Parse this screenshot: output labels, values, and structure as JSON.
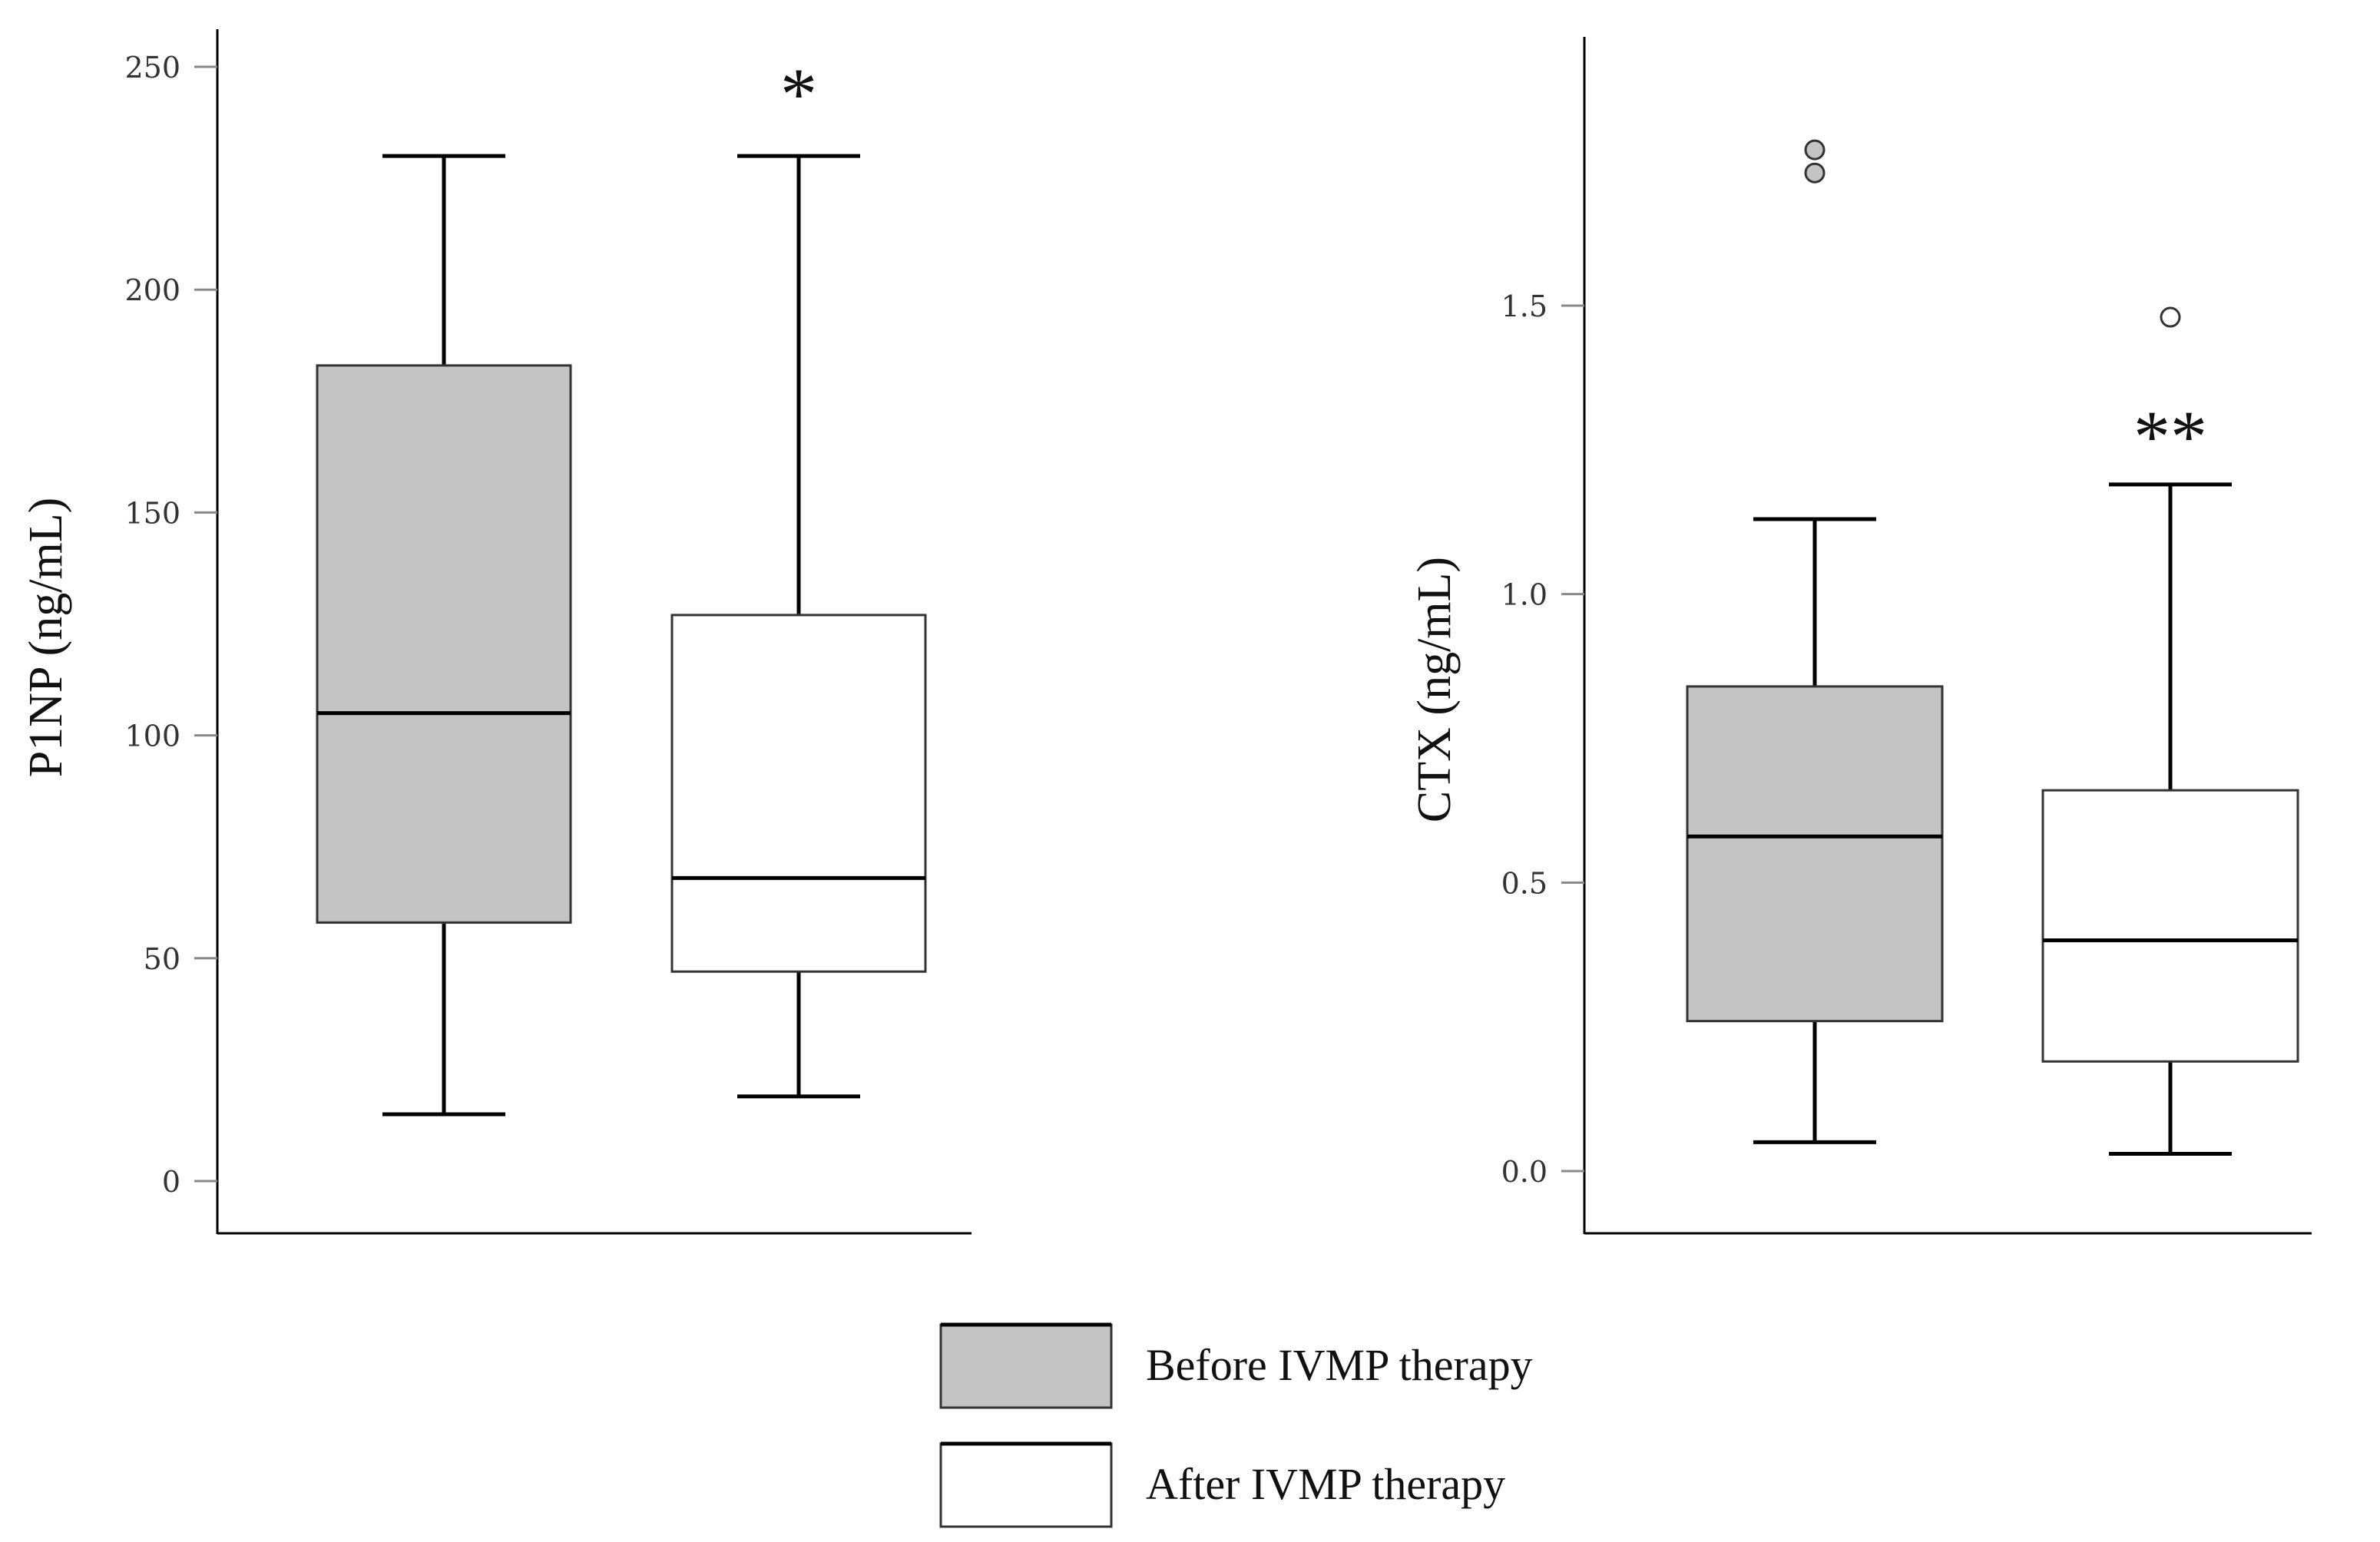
{
  "colors": {
    "before": "#c4c4c4",
    "after": "#ffffff",
    "stroke": "#000000",
    "grid_tick": "#888888"
  },
  "legend": {
    "placement": "bottom-center",
    "items": [
      {
        "label": "Before IVMP therapy",
        "fill": "#c4c4c4"
      },
      {
        "label": "After IVMP therapy",
        "fill": "#ffffff"
      }
    ]
  },
  "chart_data": [
    {
      "type": "box",
      "title": "",
      "xlabel": "",
      "ylabel": "P1NP (ng/mL)",
      "ylim": [
        -12,
        262
      ],
      "yticks": [
        0,
        50,
        100,
        150,
        200,
        250
      ],
      "ytick_labels": [
        "0",
        "50",
        "100",
        "150",
        "200",
        "250"
      ],
      "grid": false,
      "series": [
        {
          "name": "Before IVMP therapy",
          "whisker_low": 15,
          "q1": 58,
          "median": 105,
          "q3": 183,
          "whisker_high": 230,
          "outliers": [],
          "significance": ""
        },
        {
          "name": "After IVMP therapy",
          "whisker_low": 19,
          "q1": 47,
          "median": 68,
          "q3": 127,
          "whisker_high": 230,
          "outliers": [],
          "significance": "*"
        }
      ]
    },
    {
      "type": "box",
      "title": "",
      "xlabel": "",
      "ylabel": "CTX (ng/mL)",
      "ylim": [
        -0.11,
        1.97
      ],
      "yticks": [
        0.0,
        0.5,
        1.0,
        1.5
      ],
      "ytick_labels": [
        "0.0",
        "0.5",
        "1.0",
        "1.5"
      ],
      "grid": false,
      "series": [
        {
          "name": "Before IVMP therapy",
          "whisker_low": 0.05,
          "q1": 0.26,
          "median": 0.58,
          "q3": 0.84,
          "whisker_high": 1.13,
          "outliers": [
            1.77,
            1.73
          ],
          "significance": ""
        },
        {
          "name": "After IVMP therapy",
          "whisker_low": 0.03,
          "q1": 0.19,
          "median": 0.4,
          "q3": 0.66,
          "whisker_high": 1.19,
          "outliers": [
            1.48
          ],
          "significance": "**"
        }
      ]
    }
  ]
}
